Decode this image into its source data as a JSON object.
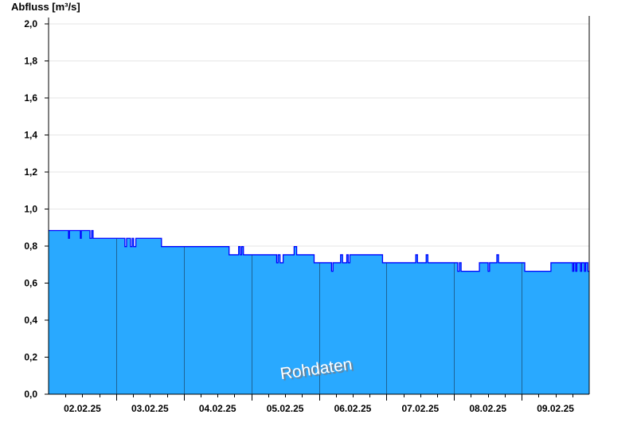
{
  "chart_data": {
    "type": "area",
    "title": "",
    "ylabel": "Abfluss [m³/s]",
    "xlabel": "",
    "ylim": [
      0,
      2.0
    ],
    "yticks": [
      "0,0",
      "0,2",
      "0,4",
      "0,6",
      "0,8",
      "1,0",
      "1,2",
      "1,4",
      "1,6",
      "1,8",
      "2,0"
    ],
    "xtick_labels": [
      "02.02.25",
      "03.02.25",
      "04.02.25",
      "05.02.25",
      "06.02.25",
      "07.02.25",
      "08.02.25",
      "09.02.25"
    ],
    "x_range_hours_from_02.02.25": [
      0,
      192
    ],
    "grid": "horizontal",
    "watermark": "Rohdaten",
    "fill_color": "#29A9FF",
    "line_color": "#0000FF",
    "series": [
      {
        "step_points_hour_value": [
          [
            0,
            0.884
          ],
          [
            7.1,
            0.842
          ],
          [
            7.4,
            0.884
          ],
          [
            11.3,
            0.842
          ],
          [
            11.6,
            0.884
          ],
          [
            14.7,
            0.842
          ],
          [
            15.3,
            0.884
          ],
          [
            15.8,
            0.842
          ],
          [
            27.1,
            0.797
          ],
          [
            27.7,
            0.842
          ],
          [
            29.1,
            0.797
          ],
          [
            29.7,
            0.842
          ],
          [
            30.2,
            0.797
          ],
          [
            31.0,
            0.842
          ],
          [
            40.1,
            0.797
          ],
          [
            64.1,
            0.753
          ],
          [
            67.5,
            0.797
          ],
          [
            68.1,
            0.753
          ],
          [
            68.6,
            0.797
          ],
          [
            69.2,
            0.753
          ],
          [
            81.0,
            0.71
          ],
          [
            81.5,
            0.753
          ],
          [
            82.2,
            0.71
          ],
          [
            83.3,
            0.753
          ],
          [
            87.2,
            0.797
          ],
          [
            88.1,
            0.753
          ],
          [
            94.3,
            0.71
          ],
          [
            100.5,
            0.664
          ],
          [
            101.0,
            0.71
          ],
          [
            103.7,
            0.753
          ],
          [
            104.4,
            0.71
          ],
          [
            105.9,
            0.753
          ],
          [
            106.4,
            0.71
          ],
          [
            107.0,
            0.753
          ],
          [
            118.6,
            0.71
          ],
          [
            130.4,
            0.753
          ],
          [
            131.0,
            0.71
          ],
          [
            134.1,
            0.753
          ],
          [
            134.7,
            0.71
          ],
          [
            145.3,
            0.664
          ],
          [
            145.9,
            0.71
          ],
          [
            146.5,
            0.664
          ],
          [
            153.0,
            0.71
          ],
          [
            156.1,
            0.664
          ],
          [
            156.6,
            0.71
          ],
          [
            159.2,
            0.753
          ],
          [
            159.8,
            0.71
          ],
          [
            169.1,
            0.664
          ],
          [
            178.4,
            0.71
          ],
          [
            186.1,
            0.664
          ],
          [
            186.5,
            0.71
          ],
          [
            187.2,
            0.664
          ],
          [
            187.6,
            0.71
          ],
          [
            188.9,
            0.664
          ],
          [
            189.3,
            0.71
          ],
          [
            190.3,
            0.664
          ],
          [
            190.7,
            0.71
          ],
          [
            191.5,
            0.664
          ]
        ]
      }
    ]
  }
}
